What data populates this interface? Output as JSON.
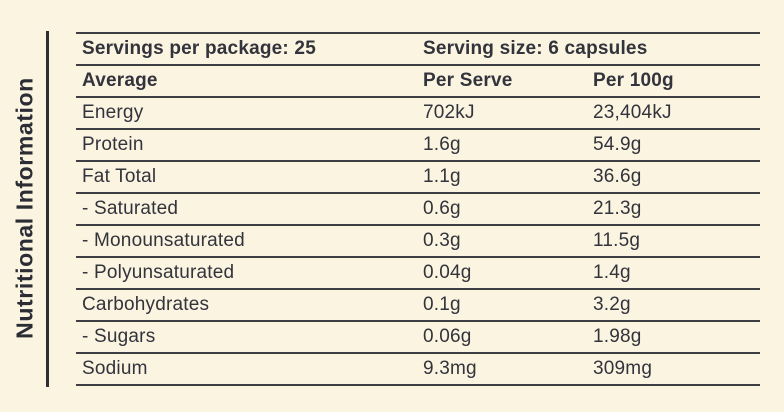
{
  "panel": {
    "vertical_label": "Nutritional Information"
  },
  "table": {
    "header_row": {
      "servings_label": "Servings per package: 25",
      "serving_size_label": "Serving size: 6 capsules"
    },
    "column_headers": {
      "nutrient": "Average",
      "per_serve": "Per Serve",
      "per_100g": "Per 100g"
    },
    "rows": [
      {
        "label": "Energy",
        "per_serve": "702kJ",
        "per_100g": "23,404kJ"
      },
      {
        "label": "Protein",
        "per_serve": "1.6g",
        "per_100g": "54.9g"
      },
      {
        "label": "Fat Total",
        "per_serve": "1.1g",
        "per_100g": "36.6g"
      },
      {
        "label": "- Saturated",
        "per_serve": "0.6g",
        "per_100g": "21.3g"
      },
      {
        "label": "- Monounsaturated",
        "per_serve": "0.3g",
        "per_100g": "11.5g"
      },
      {
        "label": "- Polyunsaturated",
        "per_serve": "0.04g",
        "per_100g": "1.4g"
      },
      {
        "label": "Carbohydrates",
        "per_serve": "0.1g",
        "per_100g": "3.2g"
      },
      {
        "label": "- Sugars",
        "per_serve": "0.06g",
        "per_100g": "1.98g"
      },
      {
        "label": "Sodium",
        "per_serve": "9.3mg",
        "per_100g": "309mg"
      }
    ]
  },
  "colors": {
    "background": "#faf4e1",
    "text": "#33333c",
    "rule_line": "#3d3d43",
    "vertical_bar": "#2e2e33"
  }
}
